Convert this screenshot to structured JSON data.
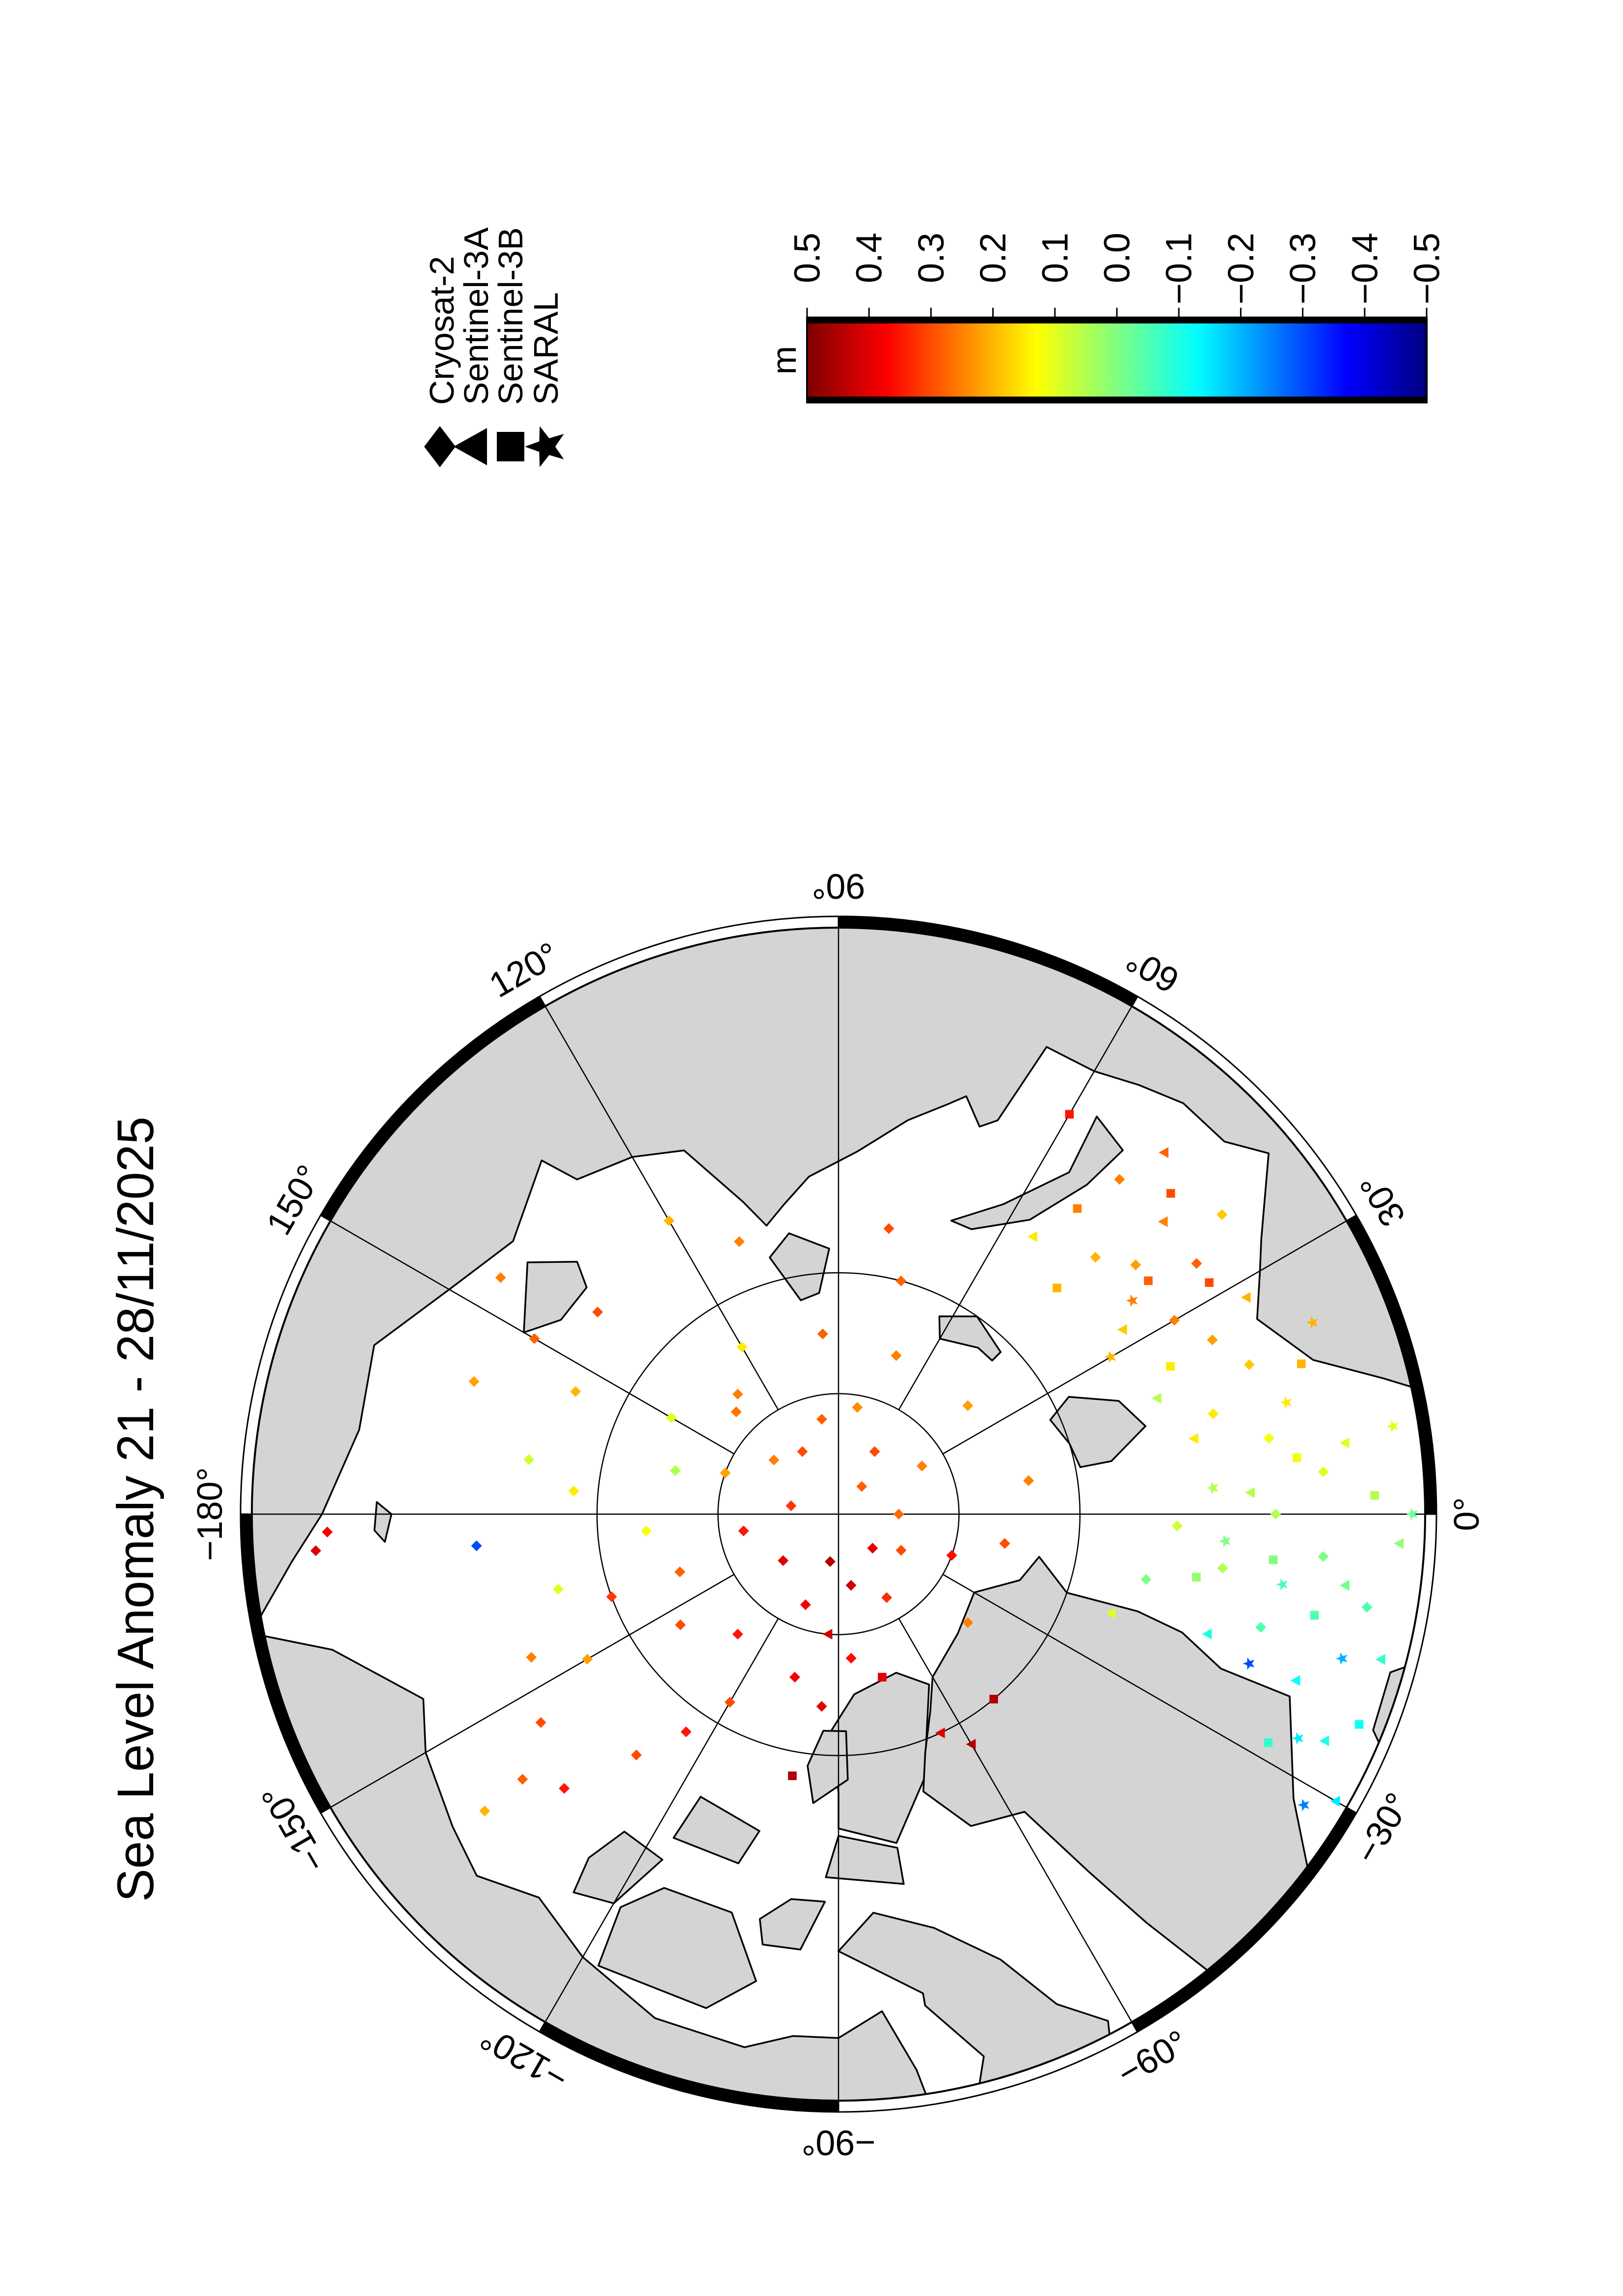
{
  "title": "Sea Level Anomaly 21 - 28/11/2025",
  "legend": {
    "items": [
      {
        "label": "Cryosat-2",
        "symbol": "diamond"
      },
      {
        "label": "Sentinel-3A",
        "symbol": "triangle"
      },
      {
        "label": "Sentinel-3B",
        "symbol": "square"
      },
      {
        "label": "SARAL",
        "symbol": "star"
      }
    ]
  },
  "colorbar": {
    "unit": "m",
    "min": -0.5,
    "max": 0.5,
    "ticks": [
      {
        "value": 0.5,
        "label": "0.5"
      },
      {
        "value": 0.4,
        "label": "0.4"
      },
      {
        "value": 0.3,
        "label": "0.3"
      },
      {
        "value": 0.2,
        "label": "0.2"
      },
      {
        "value": 0.1,
        "label": "0.1"
      },
      {
        "value": 0.0,
        "label": "0.0"
      },
      {
        "value": -0.1,
        "label": "−0.1"
      },
      {
        "value": -0.2,
        "label": "−0.2"
      },
      {
        "value": -0.3,
        "label": "−0.3"
      },
      {
        "value": -0.4,
        "label": "−0.4"
      },
      {
        "value": -0.5,
        "label": "−0.5"
      }
    ],
    "colormap": [
      {
        "value": -0.5,
        "color": "#00007f"
      },
      {
        "value": -0.37,
        "color": "#0000ff"
      },
      {
        "value": -0.25,
        "color": "#0080ff"
      },
      {
        "value": -0.13,
        "color": "#00ffff"
      },
      {
        "value": 0.0,
        "color": "#80ff80"
      },
      {
        "value": 0.13,
        "color": "#ffff00"
      },
      {
        "value": 0.25,
        "color": "#ff8000"
      },
      {
        "value": 0.37,
        "color": "#ff0000"
      },
      {
        "value": 0.5,
        "color": "#7f0000"
      }
    ]
  },
  "map": {
    "projection": "polar stereographic (north)",
    "boundary_latitude": 66,
    "latitude_circles": [
      80,
      85
    ],
    "land_color": "#d4d4d4",
    "frame": "alternating black/white 30° segments",
    "lon_labels": [
      {
        "lon": 0,
        "label": "0°"
      },
      {
        "lon": 30,
        "label": "30°"
      },
      {
        "lon": 60,
        "label": "60°"
      },
      {
        "lon": 90,
        "label": "90°"
      },
      {
        "lon": 120,
        "label": "120°"
      },
      {
        "lon": 150,
        "label": "150°"
      },
      {
        "lon": 180,
        "label": "−180°"
      },
      {
        "lon": -150,
        "label": "−150°"
      },
      {
        "lon": -120,
        "label": "−120°"
      },
      {
        "lon": -90,
        "label": "−90°"
      },
      {
        "lon": -60,
        "label": "−60°"
      },
      {
        "lon": -30,
        "label": "−30°"
      }
    ]
  },
  "chart_data": {
    "type": "scatter",
    "value_name": "sea level anomaly (m)",
    "point_format": [
      "lon",
      "lat",
      "sla_m"
    ],
    "series": [
      {
        "name": "Cryosat-2",
        "symbol": "diamond",
        "points": [
          [
            100,
            86,
            0.28
          ],
          [
            120,
            87,
            0.3
          ],
          [
            140,
            86.5,
            0.25
          ],
          [
            160,
            85,
            0.22
          ],
          [
            -170,
            86,
            0.35
          ],
          [
            -140,
            87,
            0.4
          ],
          [
            -110,
            86,
            0.38
          ],
          [
            -80,
            87,
            0.42
          ],
          [
            -60,
            86,
            0.33
          ],
          [
            -30,
            87,
            0.3
          ],
          [
            0,
            87.5,
            0.27
          ],
          [
            30,
            86,
            0.25
          ],
          [
            60,
            87,
            0.3
          ],
          [
            80,
            85.5,
            0.24
          ],
          [
            -20,
            85,
            0.36
          ],
          [
            -100,
            88,
            0.45
          ],
          [
            170,
            88,
            0.32
          ],
          [
            50,
            88.5,
            0.28
          ],
          [
            -45,
            88,
            0.4
          ],
          [
            135,
            84,
            0.26
          ],
          [
            150,
            82,
            0.1
          ],
          [
            165,
            83,
            0.05
          ],
          [
            -175,
            82,
            0.12
          ],
          [
            -160,
            83,
            0.28
          ],
          [
            -145,
            82,
            0.3
          ],
          [
            -130,
            83.5,
            0.35
          ],
          [
            -120,
            81,
            0.3
          ],
          [
            -105,
            83,
            0.38
          ],
          [
            -95,
            82,
            0.4
          ],
          [
            -85,
            84,
            0.36
          ],
          [
            -40,
            83,
            0.25
          ],
          [
            -10,
            83,
            0.3
          ],
          [
            10,
            82,
            0.25
          ],
          [
            40,
            83,
            0.22
          ],
          [
            70,
            83,
            0.25
          ],
          [
            95,
            82.5,
            0.28
          ],
          [
            120,
            82,
            0.15
          ],
          [
            130,
            83.5,
            0.25
          ],
          [
            170,
            77,
            0.08
          ],
          [
            175,
            79,
            0.15
          ],
          [
            -175,
            75,
            -0.3
          ],
          [
            -165,
            78,
            0.1
          ],
          [
            -155,
            76,
            0.25
          ],
          [
            -145,
            75,
            0.3
          ],
          [
            -140,
            73,
            0.28
          ],
          [
            -135,
            74,
            0.35
          ],
          [
            -150,
            78,
            0.22
          ],
          [
            -160,
            80,
            0.32
          ],
          [
            -130,
            77,
            0.3
          ],
          [
            -125,
            79,
            0.35
          ],
          [
            -140,
            71,
            0.2
          ],
          [
            160,
            74,
            0.22
          ],
          [
            150,
            75.5,
            0.28
          ],
          [
            145,
            73,
            0.25
          ],
          [
            140,
            77,
            0.3
          ],
          [
            155,
            78,
            0.2
          ],
          [
            -178,
            69,
            0.38
          ],
          [
            -176,
            68.5,
            0.4
          ],
          [
            120,
            76,
            0.2
          ],
          [
            110,
            78,
            0.25
          ],
          [
            80,
            78,
            0.3
          ],
          [
            75,
            80,
            0.28
          ],
          [
            -10,
            68,
            -0.05
          ],
          [
            -5,
            70,
            0.0
          ],
          [
            -15,
            72,
            -0.05
          ],
          [
            -8,
            74,
            0.05
          ],
          [
            0,
            72,
            0.05
          ],
          [
            5,
            70,
            0.1
          ],
          [
            10,
            72,
            0.12
          ],
          [
            15,
            74,
            0.15
          ],
          [
            -2,
            76,
            0.08
          ],
          [
            -12,
            77,
            0.0
          ],
          [
            20,
            72,
            0.18
          ],
          [
            25,
            73,
            0.22
          ],
          [
            30,
            74,
            0.25
          ],
          [
            35,
            72,
            0.28
          ],
          [
            40,
            74,
            0.22
          ],
          [
            45,
            75,
            0.2
          ],
          [
            50,
            72,
            0.25
          ],
          [
            38,
            70,
            0.18
          ]
        ]
      },
      {
        "name": "Sentinel-3A",
        "symbol": "triangle",
        "points": [
          [
            -25,
            68,
            -0.1
          ],
          [
            -20,
            70,
            -0.12
          ],
          [
            -15,
            67,
            -0.08
          ],
          [
            -8,
            69,
            -0.02
          ],
          [
            -3,
            67,
            0.02
          ],
          [
            -18,
            74,
            -0.1
          ],
          [
            3,
            73,
            0.05
          ],
          [
            8,
            69,
            0.1
          ],
          [
            12,
            75,
            0.15
          ],
          [
            28,
            71,
            0.2
          ],
          [
            33,
            76,
            0.18
          ],
          [
            42,
            72,
            0.25
          ],
          [
            48,
            70,
            0.28
          ],
          [
            -65,
            80,
            0.4
          ],
          [
            -60,
            79,
            0.45
          ],
          [
            -95,
            85,
            0.42
          ],
          [
            -20,
            78,
            0.1
          ],
          [
            -30,
            66.5,
            -0.15
          ],
          [
            55,
            76,
            0.15
          ],
          [
            20,
            76,
            0.05
          ]
        ]
      },
      {
        "name": "Sentinel-3B",
        "symbol": "square",
        "points": [
          [
            -22,
            67,
            -0.12
          ],
          [
            -12,
            70,
            -0.05
          ],
          [
            -6,
            72,
            0.0
          ],
          [
            2,
            68,
            0.05
          ],
          [
            7,
            71,
            0.12
          ],
          [
            18,
            70,
            0.2
          ],
          [
            24,
            75,
            0.15
          ],
          [
            32,
            72,
            0.3
          ],
          [
            37,
            74,
            0.28
          ],
          [
            44,
            71,
            0.3
          ],
          [
            52,
            74,
            0.25
          ],
          [
            46,
            77,
            0.2
          ],
          [
            -28,
            70,
            -0.08
          ],
          [
            -10,
            75,
            0.02
          ],
          [
            -50,
            80,
            0.45
          ],
          [
            -100,
            79,
            0.45
          ],
          [
            60,
            71,
            0.35
          ],
          [
            -75,
            83,
            0.4
          ]
        ]
      },
      {
        "name": "SARAL",
        "symbol": "star",
        "points": [
          [
            -16,
            68.5,
            -0.2
          ],
          [
            -26,
            69,
            -0.15
          ],
          [
            -9,
            71.5,
            -0.05
          ],
          [
            -4,
            74,
            0.0
          ],
          [
            4,
            74.5,
            0.05
          ],
          [
            9,
            67,
            0.1
          ],
          [
            14,
            71,
            0.15
          ],
          [
            22,
            69,
            0.2
          ],
          [
            30,
            77,
            0.2
          ],
          [
            36,
            75,
            0.25
          ],
          [
            -20,
            72,
            -0.3
          ],
          [
            0,
            66.5,
            -0.02
          ],
          [
            -32,
            67.5,
            -0.25
          ]
        ]
      }
    ]
  }
}
